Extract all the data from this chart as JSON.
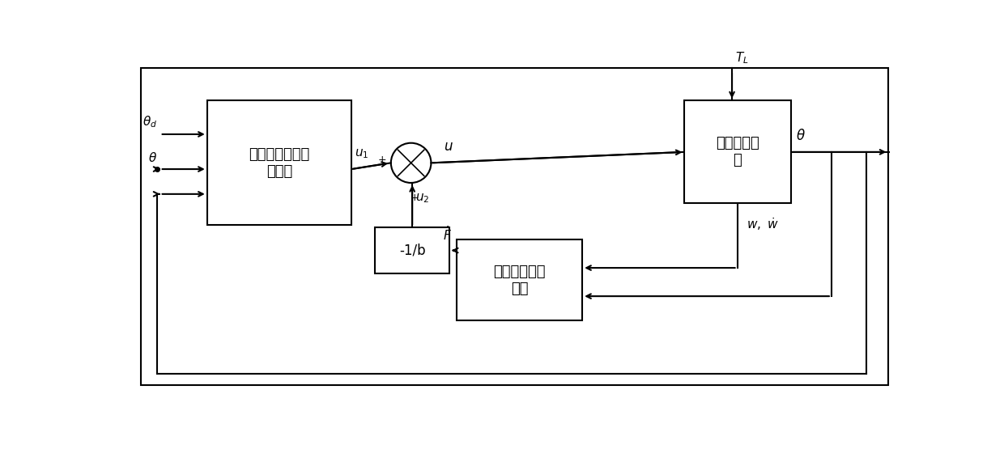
{
  "bg_color": "#ffffff",
  "lw": 1.5,
  "ctrl_label": "自适应反演滑模\n控制器",
  "motor_label": "直流无刷电\n机",
  "observer_label": "非线性干扰观\n测器",
  "neg1b_label": "-1/b",
  "labels": {
    "theta_d": "$\\theta_d$",
    "theta_in": "$\\theta$",
    "u1": "$u_1$",
    "u2": "$u_2$",
    "u": "$u$",
    "TL": "$T_L$",
    "theta_out": "$\\theta$",
    "wdot": "$w,\\ \\dot{w}$",
    "Fhat": "$\\hat{F}$",
    "plus_left": "+",
    "plus_bottom": "+"
  },
  "font_size_box": 13,
  "font_size_label": 11,
  "font_size_plus": 9
}
